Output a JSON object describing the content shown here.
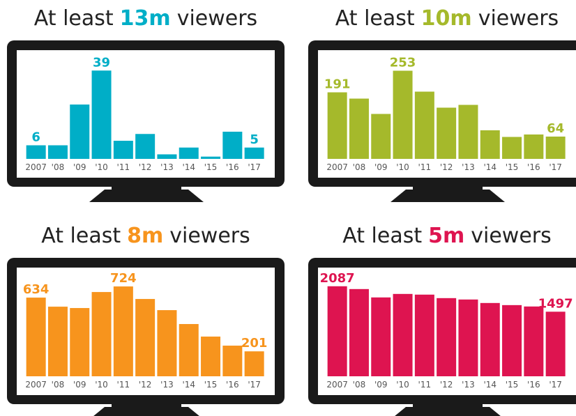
{
  "chart_data": [
    {
      "type": "bar",
      "title": {
        "before": "At least",
        "highlight": "13m",
        "after": "viewers"
      },
      "color": "#00aec7",
      "categories": [
        "2007",
        "'08",
        "'09",
        "'10",
        "'11",
        "'12",
        "'13",
        "'14",
        "'15",
        "'16",
        "'17"
      ],
      "values": [
        6,
        6,
        24,
        39,
        8,
        11,
        2,
        5,
        1,
        12,
        5
      ],
      "value_labels": [
        "6",
        null,
        null,
        "39",
        null,
        null,
        null,
        null,
        null,
        null,
        "5"
      ],
      "ylim": [
        0,
        40
      ]
    },
    {
      "type": "bar",
      "title": {
        "before": "At least",
        "highlight": "10m",
        "after": "viewers"
      },
      "color": "#a5b92b",
      "categories": [
        "2007",
        "'08",
        "'09",
        "'10",
        "'11",
        "'12",
        "'13",
        "'14",
        "'15",
        "'16",
        "'17"
      ],
      "values": [
        191,
        173,
        129,
        253,
        193,
        147,
        155,
        82,
        63,
        70,
        64
      ],
      "value_labels": [
        "191",
        null,
        null,
        "253",
        null,
        null,
        null,
        null,
        null,
        null,
        "64"
      ],
      "ylim": [
        0,
        260
      ]
    },
    {
      "type": "bar",
      "title": {
        "before": "At least",
        "highlight": "8m",
        "after": "viewers"
      },
      "color": "#f7941d",
      "categories": [
        "2007",
        "'08",
        "'09",
        "'10",
        "'11",
        "'12",
        "'13",
        "'14",
        "'15",
        "'16",
        "'17"
      ],
      "values": [
        634,
        561,
        550,
        679,
        724,
        623,
        533,
        421,
        320,
        247,
        201
      ],
      "value_labels": [
        "634",
        null,
        null,
        null,
        "724",
        null,
        null,
        null,
        null,
        null,
        "201"
      ],
      "ylim": [
        0,
        730
      ]
    },
    {
      "type": "bar",
      "title": {
        "before": "At least",
        "highlight": "5m",
        "after": "viewers"
      },
      "color": "#de1450",
      "categories": [
        "2007",
        "'08",
        "'09",
        "'10",
        "'11",
        "'12",
        "'13",
        "'14",
        "'15",
        "'16",
        "'17"
      ],
      "values": [
        2087,
        2022,
        1828,
        1909,
        1893,
        1812,
        1780,
        1699,
        1650,
        1618,
        1497
      ],
      "value_labels": [
        "2087",
        null,
        null,
        null,
        null,
        null,
        null,
        null,
        null,
        null,
        "1497"
      ],
      "ylim": [
        0,
        2100
      ]
    }
  ]
}
